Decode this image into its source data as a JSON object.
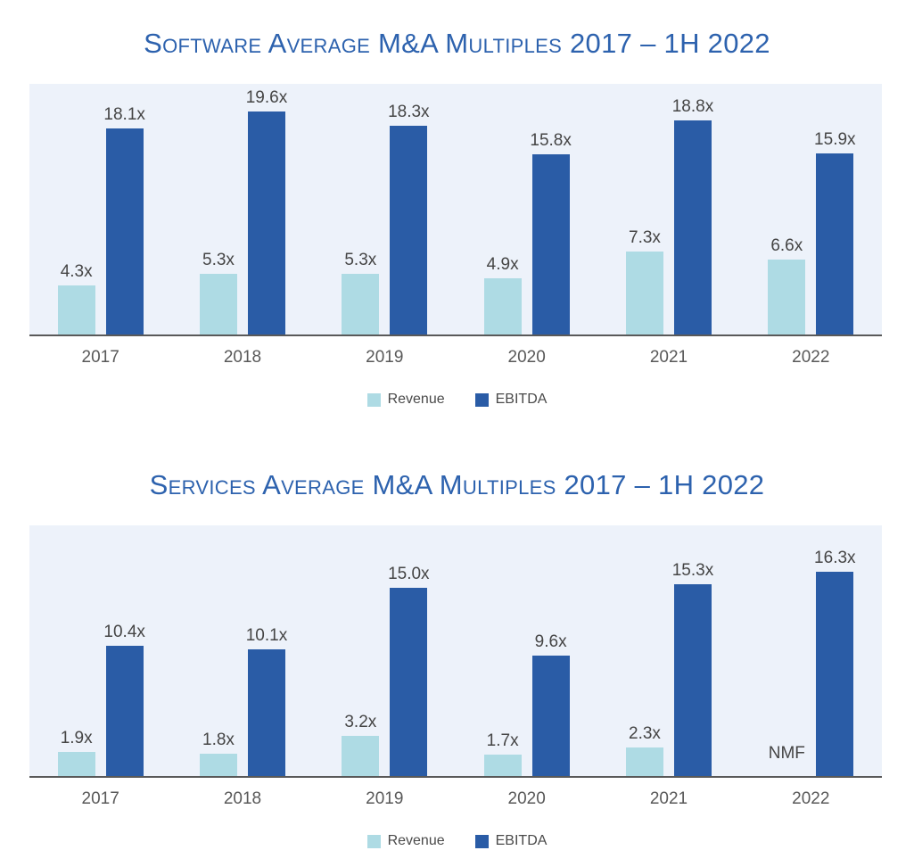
{
  "styles": {
    "panel_bg": "#edf2fa",
    "axis_color": "#595959",
    "title_color": "#2d62ae",
    "value_label_color": "#454545",
    "tick_color": "#595959",
    "legend_text_color": "#4a4a4a"
  },
  "chart_data": [
    {
      "type": "bar",
      "title": "Software Average M&A Multiples 2017 – 1H 2022",
      "categories": [
        "2017",
        "2018",
        "2019",
        "2020",
        "2021",
        "2022"
      ],
      "series": [
        {
          "name": "Revenue",
          "color": "#aedbe4",
          "values": [
            4.3,
            5.3,
            5.3,
            4.9,
            7.3,
            6.6
          ],
          "labels": [
            "4.3x",
            "5.3x",
            "5.3x",
            "4.9x",
            "7.3x",
            "6.6x"
          ]
        },
        {
          "name": "EBITDA",
          "color": "#2a5ca6",
          "values": [
            18.1,
            19.6,
            18.3,
            15.8,
            18.8,
            15.9
          ],
          "labels": [
            "18.1x",
            "19.6x",
            "18.3x",
            "15.8x",
            "18.8x",
            "15.9x"
          ]
        }
      ],
      "xlabel": "",
      "ylabel": "",
      "ylim": [
        0,
        22
      ],
      "grid": false,
      "y_axis_visible": false,
      "legend_position": "bottom"
    },
    {
      "type": "bar",
      "title": "Services Average M&A Multiples 2017 – 1H 2022",
      "categories": [
        "2017",
        "2018",
        "2019",
        "2020",
        "2021",
        "2022"
      ],
      "series": [
        {
          "name": "Revenue",
          "color": "#aedbe4",
          "values": [
            1.9,
            1.8,
            3.2,
            1.7,
            2.3,
            null
          ],
          "labels": [
            "1.9x",
            "1.8x",
            "3.2x",
            "1.7x",
            "2.3x",
            "NMF"
          ]
        },
        {
          "name": "EBITDA",
          "color": "#2a5ca6",
          "values": [
            10.4,
            10.1,
            15.0,
            9.6,
            15.3,
            16.3
          ],
          "labels": [
            "10.4x",
            "10.1x",
            "15.0x",
            "9.6x",
            "15.3x",
            "16.3x"
          ]
        }
      ],
      "xlabel": "",
      "ylabel": "",
      "ylim": [
        0,
        20
      ],
      "grid": false,
      "y_axis_visible": false,
      "legend_position": "bottom"
    }
  ]
}
